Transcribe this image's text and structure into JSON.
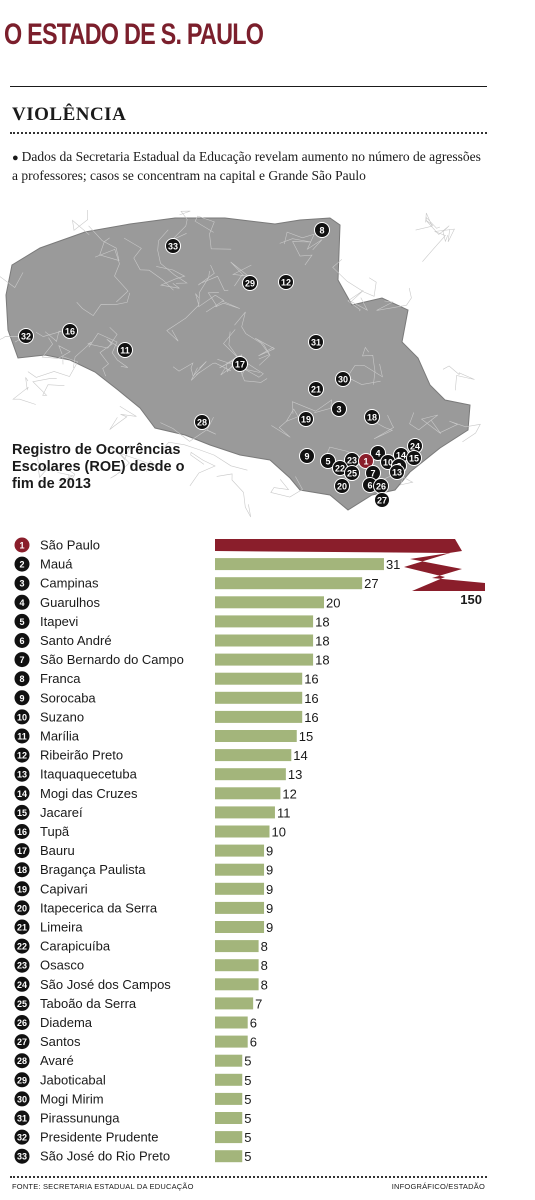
{
  "header": {
    "masthead": "O ESTADO DE S. PAULO",
    "section": "VIOLÊNCIA",
    "intro": "Dados da Secretaria Estadual da Educação revelam aumento no número de agressões a professores; casos se concentram na capital e Grande São Paulo"
  },
  "map": {
    "colors": {
      "land": "#9a9a9a",
      "border": "#c9c9c9",
      "marker": "#111111",
      "highlight": "#8a1e2b"
    },
    "markers": [
      "8",
      "33",
      "29",
      "12",
      "32",
      "16",
      "11",
      "31",
      "17",
      "30",
      "21",
      "3",
      "19",
      "18",
      "28",
      "24",
      "4",
      "14",
      "15",
      "10",
      "2",
      "13",
      "9",
      "5",
      "23",
      "1",
      "22",
      "25",
      "7",
      "6",
      "26",
      "20",
      "27"
    ]
  },
  "chart_title": "Registro de Ocorrências Escolares (ROE) desde o fim de 2013",
  "chart_data": {
    "type": "bar",
    "orientation": "horizontal",
    "colors": {
      "first": "#8a1e2b",
      "others": "#a3b57b"
    },
    "categories": [
      "São Paulo",
      "Mauá",
      "Campinas",
      "Guarulhos",
      "Itapevi",
      "Santo André",
      "São Bernardo do Campo",
      "Franca",
      "Sorocaba",
      "Suzano",
      "Marília",
      "Ribeirão Preto",
      "Itaquaquecetuba",
      "Mogi das Cruzes",
      "Jacareí",
      "Tupã",
      "Bauru",
      "Bragança Paulista",
      "Capivari",
      "Itapecerica da Serra",
      "Limeira",
      "Carapicuíba",
      "Osasco",
      "São José dos Campos",
      "Taboão da Serra",
      "Diadema",
      "Santos",
      "Avaré",
      "Jaboticabal",
      "Mogi Mirim",
      "Pirassununga",
      "Presidente Prudente",
      "São José do Rio Preto"
    ],
    "values": [
      150,
      31,
      27,
      20,
      18,
      18,
      18,
      16,
      16,
      16,
      15,
      14,
      13,
      12,
      11,
      10,
      9,
      9,
      9,
      9,
      9,
      8,
      8,
      8,
      7,
      6,
      6,
      5,
      5,
      5,
      5,
      5,
      5
    ],
    "ranks": [
      "1",
      "2",
      "3",
      "4",
      "5",
      "6",
      "7",
      "8",
      "9",
      "10",
      "11",
      "12",
      "13",
      "14",
      "15",
      "16",
      "17",
      "18",
      "19",
      "20",
      "21",
      "22",
      "23",
      "24",
      "25",
      "26",
      "27",
      "28",
      "29",
      "30",
      "31",
      "32",
      "33"
    ]
  },
  "footer": {
    "source": "FONTE: SECRETARIA ESTADUAL DA EDUCAÇÃO",
    "credit": "INFOGRÁFICO/ESTADÃO"
  }
}
